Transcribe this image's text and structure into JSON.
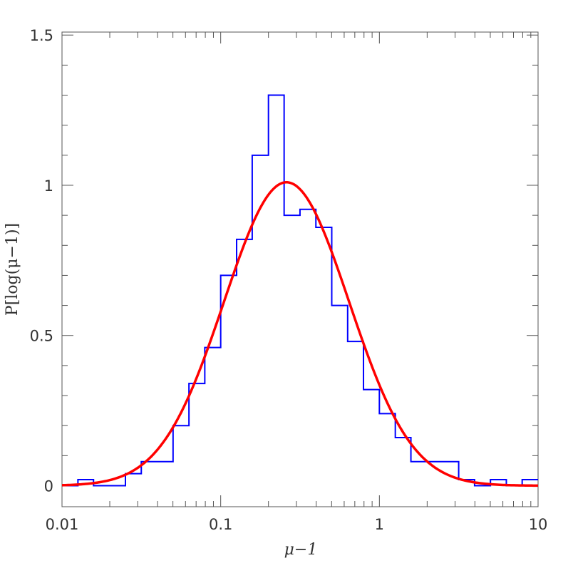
{
  "chart_data": {
    "type": "histogram",
    "xlabel": "μ−1",
    "ylabel": "P[log(μ−1)]",
    "xscale": "log",
    "xlim": [
      0.01,
      10
    ],
    "ylim": [
      -0.07,
      1.51
    ],
    "x_ticks": [
      {
        "value": 0.01,
        "label": "0.01"
      },
      {
        "value": 0.1,
        "label": "0.1"
      },
      {
        "value": 1,
        "label": "1"
      },
      {
        "value": 10,
        "label": "10"
      }
    ],
    "y_ticks": [
      {
        "value": 0,
        "label": "0"
      },
      {
        "value": 0.5,
        "label": "0.5"
      },
      {
        "value": 1,
        "label": "1"
      },
      {
        "value": 1.5,
        "label": "1.5"
      }
    ],
    "series": [
      {
        "kind": "histogram",
        "color": "#0000ff",
        "bin_edges": [
          0.01,
          0.0126,
          0.0158,
          0.02,
          0.0251,
          0.0316,
          0.0398,
          0.0501,
          0.0631,
          0.0794,
          0.1,
          0.126,
          0.158,
          0.2,
          0.251,
          0.316,
          0.398,
          0.501,
          0.631,
          0.794,
          1.0,
          1.26,
          1.58,
          2.0,
          2.51,
          3.16,
          3.98,
          5.01,
          6.31,
          7.94,
          10.0
        ],
        "values": [
          0,
          0.02,
          0,
          0,
          0.04,
          0.08,
          0.08,
          0.2,
          0.34,
          0.46,
          0.7,
          0.82,
          1.1,
          1.3,
          0.9,
          0.92,
          0.86,
          0.6,
          0.48,
          0.32,
          0.24,
          0.16,
          0.08,
          0.08,
          0.08,
          0.02,
          0,
          0.02,
          0,
          0.02
        ]
      },
      {
        "kind": "line",
        "color": "#ff0000",
        "function": "gaussian",
        "peak": 1.01,
        "center_x": 0.26,
        "sigma_log10": 0.394
      }
    ]
  }
}
